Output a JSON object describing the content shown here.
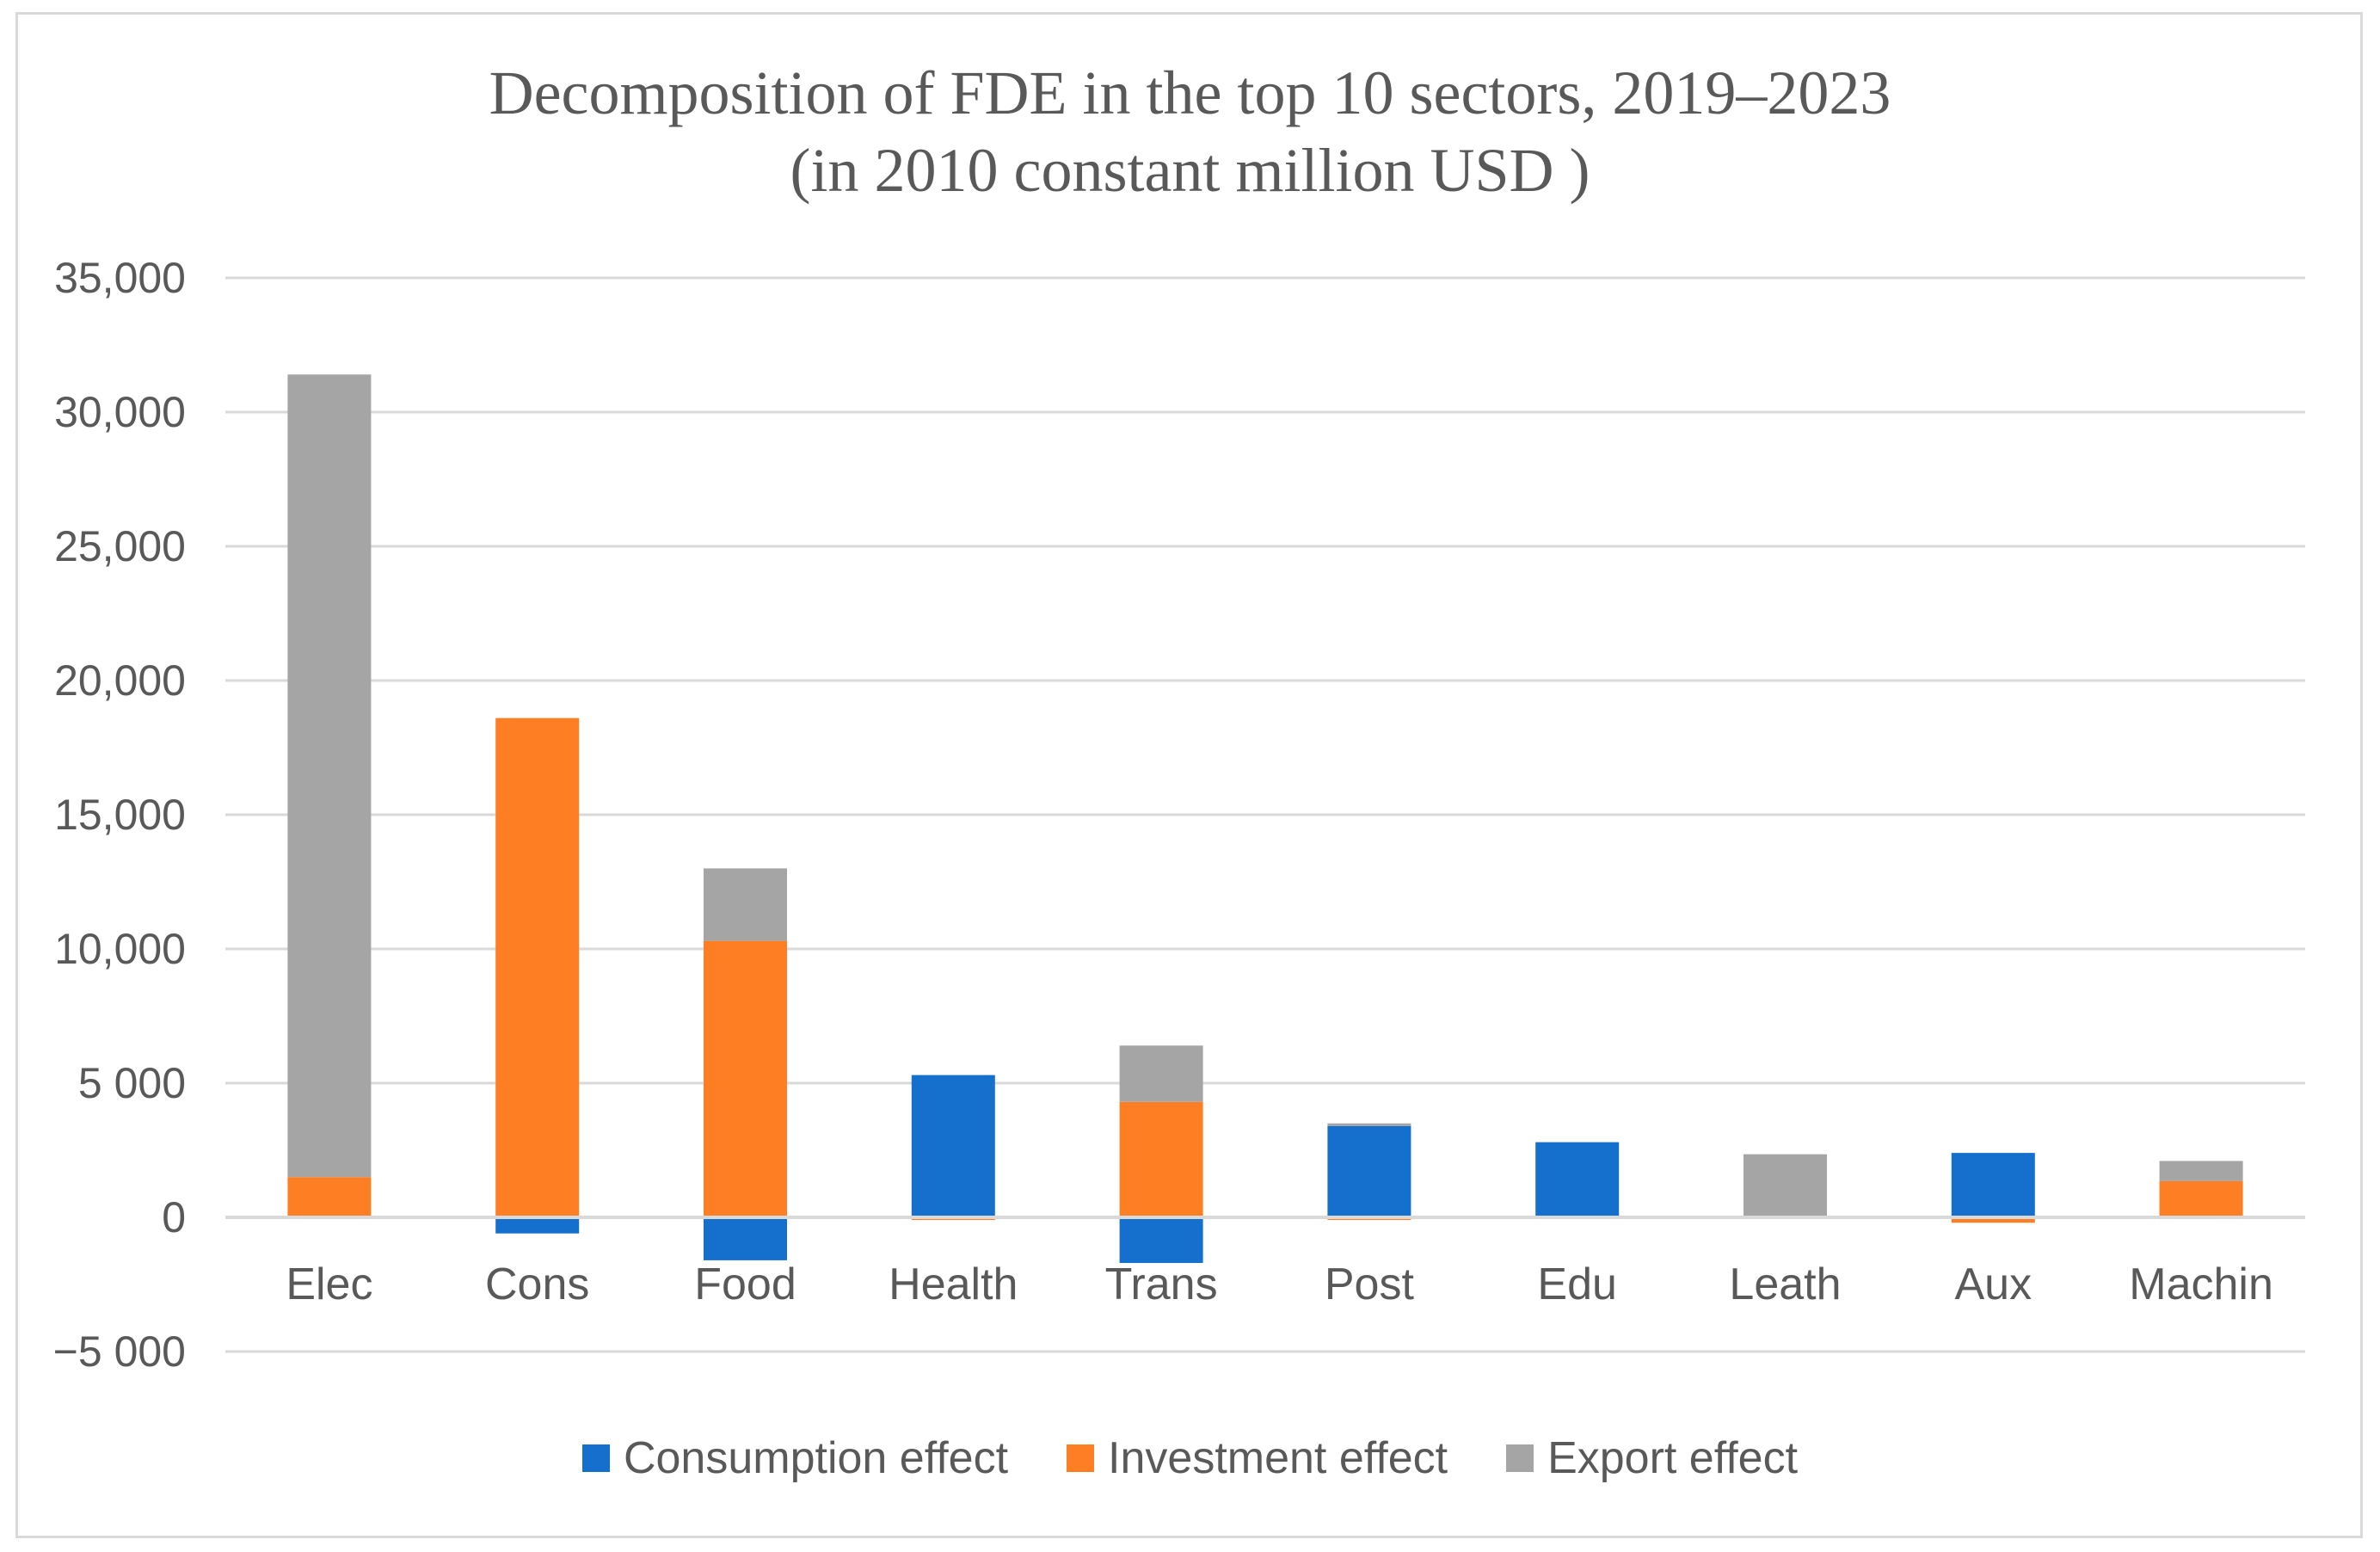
{
  "chart_data": {
    "type": "bar",
    "stacked": true,
    "title_line1": "Decomposition of FDE in the top 10 sectors, 2019–2023",
    "title_line2": "(in 2010 constant million USD )",
    "categories": [
      "Elec",
      "Cons",
      "Food",
      "Health",
      "Trans",
      "Post",
      "Edu",
      "Leath",
      "Aux",
      "Machin"
    ],
    "series": [
      {
        "name": "Consumption effect",
        "color": "#1570cd",
        "values": [
          0,
          -600,
          -1600,
          5300,
          -1700,
          3400,
          2800,
          0,
          2400,
          0
        ]
      },
      {
        "name": "Investment effect",
        "color": "#fd7e23",
        "values": [
          1500,
          18600,
          10300,
          -100,
          4300,
          -100,
          0,
          0,
          -200,
          1350
        ]
      },
      {
        "name": "Export effect",
        "color": "#a5a5a5",
        "values": [
          29900,
          0,
          2700,
          0,
          2100,
          100,
          0,
          2350,
          0,
          750
        ]
      }
    ],
    "ylim": [
      -5000,
      35000
    ],
    "yticks": [
      -5000,
      0,
      5000,
      10000,
      15000,
      20000,
      25000,
      30000,
      35000
    ],
    "ytick_labels": [
      "−5 000",
      "0",
      "5 000",
      "10,000",
      "15,000",
      "20,000",
      "25,000",
      "30,000",
      "35,000"
    ],
    "grid": true,
    "legend_position": "bottom"
  }
}
